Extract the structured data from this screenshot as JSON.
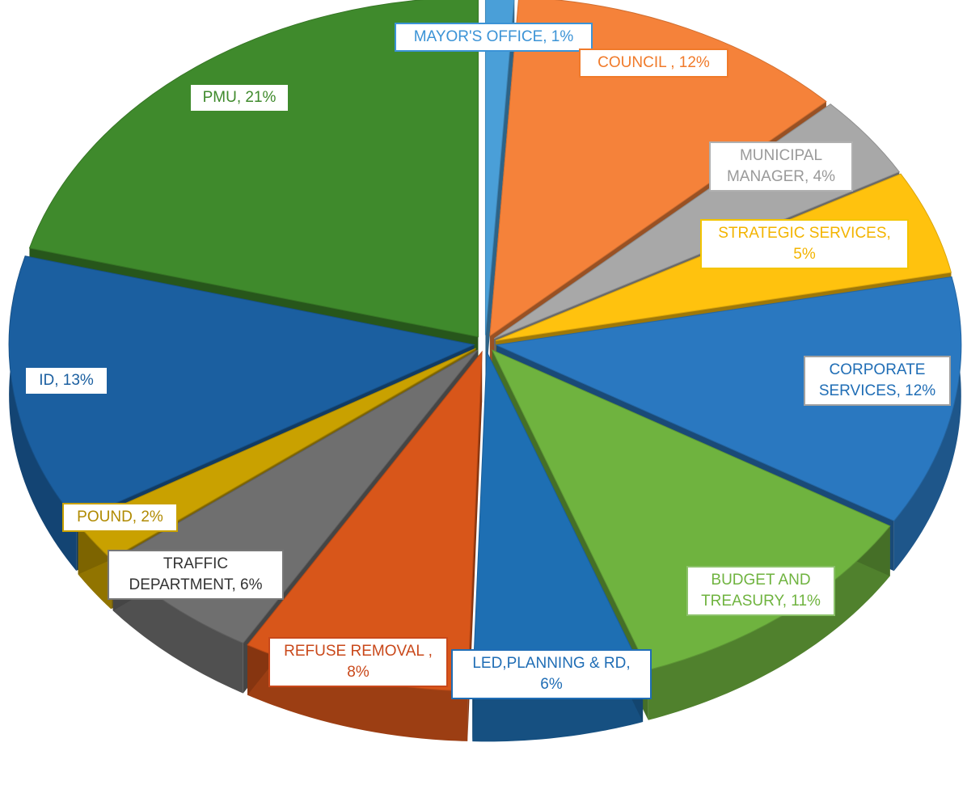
{
  "chart_data": {
    "type": "pie",
    "style": "3d-exploded",
    "slices": [
      {
        "name": "MAYOR'S OFFICE",
        "value": 1,
        "color": "#4a9fd8",
        "label_text": "MAYOR'S OFFICE, 1%"
      },
      {
        "name": "COUNCIL",
        "value": 12,
        "color": "#f5823a",
        "label_text": "COUNCIL , 12%"
      },
      {
        "name": "MUNICIPAL MANAGER",
        "value": 4,
        "color": "#a8a8a8",
        "label_text": "MUNICIPAL MANAGER, 4%"
      },
      {
        "name": "STRATEGIC SERVICES",
        "value": 5,
        "color": "#ffc20e",
        "label_text": "STRATEGIC SERVICES, 5%"
      },
      {
        "name": "CORPORATE SERVICES",
        "value": 12,
        "color": "#2a78c0",
        "label_text": "CORPORATE SERVICES, 12%"
      },
      {
        "name": "BUDGET AND TREASURY",
        "value": 11,
        "color": "#6fb33f",
        "label_text": "BUDGET AND TREASURY, 11%"
      },
      {
        "name": "LED,PLANNING & RD",
        "value": 6,
        "color": "#1e6fb3",
        "label_text": "LED,PLANNING & RD, 6%"
      },
      {
        "name": "REFUSE REMOVAL",
        "value": 8,
        "color": "#d8561a",
        "label_text": "REFUSE REMOVAL , 8%"
      },
      {
        "name": "TRAFFIC DEPARTMENT",
        "value": 6,
        "color": "#6f6f6f",
        "label_text": "TRAFFIC DEPARTMENT, 6%"
      },
      {
        "name": "POUND",
        "value": 2,
        "color": "#c9a100",
        "label_text": "POUND, 2%"
      },
      {
        "name": "ID",
        "value": 13,
        "color": "#1b5fa0",
        "label_text": "ID, 13%"
      },
      {
        "name": "PMU",
        "value": 21,
        "color": "#3f8a2c",
        "label_text": "PMU, 21%"
      }
    ],
    "legend": "none",
    "title": ""
  }
}
